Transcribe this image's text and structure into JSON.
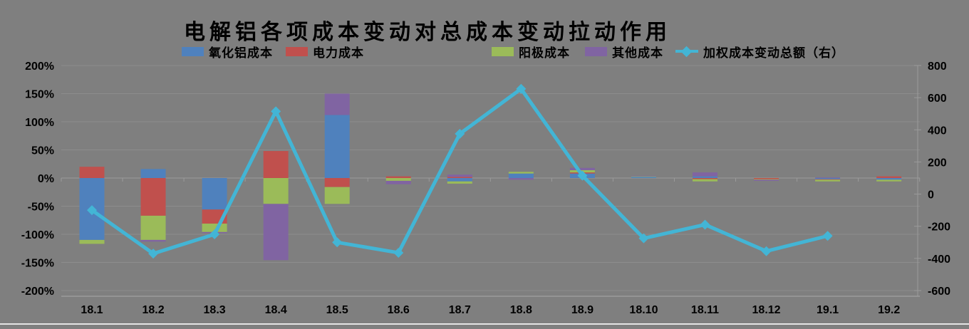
{
  "title": "电解铝各项成本变动对总成本变动拉动作用",
  "background_color": "#7f7f7f",
  "gridline_color": "#8d8d8d",
  "axis_line_color": "#9b9b9b",
  "chart_bottom_border_color": "#e4e4e4",
  "chart_data": {
    "type": "combo: stacked-bar + line",
    "title": "电解铝各项成本变动对总成本变动拉动作用",
    "categories": [
      "18.1",
      "18.2",
      "18.3",
      "18.4",
      "18.5",
      "18.6",
      "18.7",
      "18.8",
      "18.9",
      "18.10",
      "18.11",
      "18.12",
      "19.1",
      "19.2"
    ],
    "series": [
      {
        "name": "氧化铝成本",
        "type": "bar",
        "stack": true,
        "axis": "left",
        "unit": "%",
        "color": "#4f81bd",
        "values": [
          -110,
          16,
          -56,
          0,
          112,
          0,
          -6,
          8,
          8,
          2,
          3,
          0,
          -2,
          -3
        ]
      },
      {
        "name": "电力成本",
        "type": "bar",
        "stack": true,
        "axis": "left",
        "unit": "%",
        "color": "#c0504d",
        "values": [
          20,
          -67,
          -25,
          48,
          -16,
          3,
          2,
          0,
          2,
          0,
          -2,
          -2,
          -1,
          3
        ]
      },
      {
        "name": "阳极成本",
        "type": "bar",
        "stack": true,
        "axis": "left",
        "unit": "%",
        "color": "#9bbb59",
        "values": [
          -7,
          -43,
          -15,
          -46,
          -30,
          -5,
          -4,
          3,
          4,
          1,
          -4,
          -1,
          -3,
          -3
        ]
      },
      {
        "name": "其他成本",
        "type": "bar",
        "stack": true,
        "axis": "left",
        "unit": "%",
        "color": "#8064a2",
        "values": [
          0,
          -3,
          -2,
          -100,
          38,
          -6,
          4,
          -3,
          4,
          1,
          7,
          -2,
          1,
          0
        ]
      },
      {
        "name": "加权成本变动总额（右）",
        "type": "line",
        "axis": "right",
        "color": "#43b5d5",
        "marker": "diamond",
        "values": [
          -100,
          -370,
          -250,
          515,
          -300,
          -365,
          375,
          655,
          115,
          -275,
          -190,
          -355,
          -260,
          null
        ]
      }
    ],
    "left_axis": {
      "min": -200,
      "max": 200,
      "step": 50,
      "unit": "%",
      "tick_labels": [
        "200%",
        "150%",
        "100%",
        "50%",
        "0%",
        "-50%",
        "-100%",
        "-150%",
        "-200%"
      ]
    },
    "right_axis": {
      "min": -600,
      "max": 800,
      "step": 200,
      "tick_labels": [
        "800",
        "600",
        "400",
        "200",
        "0",
        "-200",
        "-400",
        "-600"
      ]
    },
    "legend_position": "top",
    "grid": true
  }
}
